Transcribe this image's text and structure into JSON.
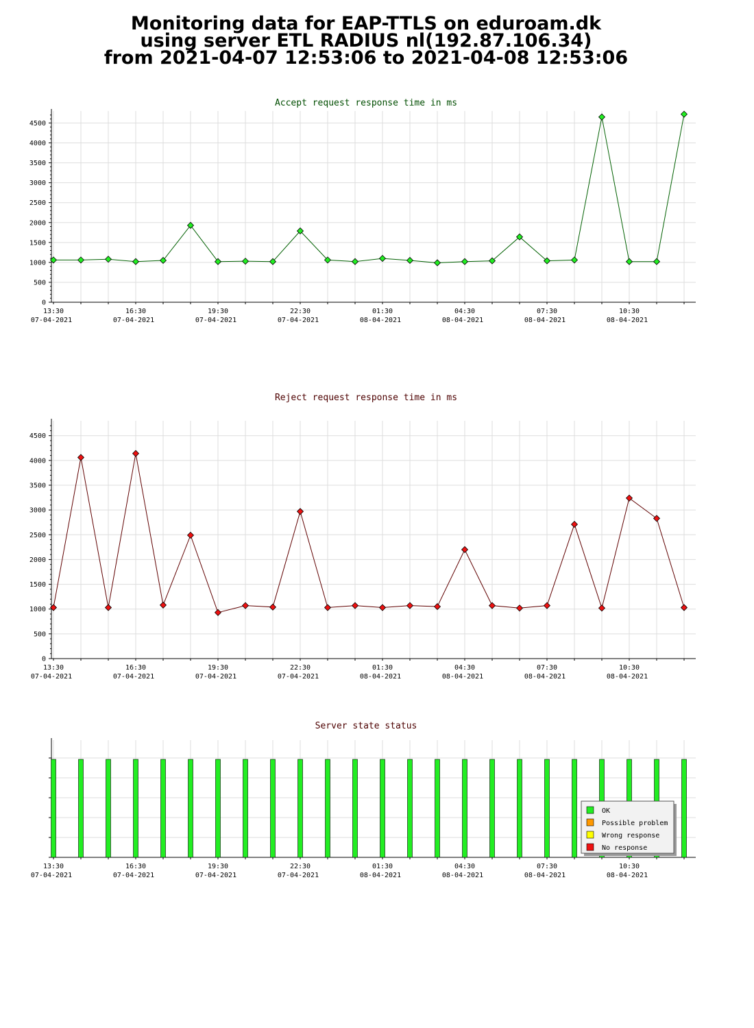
{
  "page": {
    "title_lines": [
      "Monitoring data for EAP-TTLS on eduroam.dk",
      "using server ETL RADIUS nl(192.87.106.34)",
      "from 2021-04-07 12:53:06 to 2021-04-08 12:53:06"
    ]
  },
  "colors": {
    "accept_line": "#006000",
    "accept_marker": "#22ee22",
    "reject_line": "#600000",
    "reject_marker": "#ee1111",
    "title_accept": "#004d00",
    "title_reject": "#4d0000",
    "grid": "#dddddd",
    "ok": "#22ee22",
    "possible_problem": "#ff9900",
    "wrong_response": "#ffff00",
    "no_response": "#ee1111"
  },
  "x_axis": {
    "ticks": [
      {
        "time": "13:30",
        "date": "07-04-2021"
      },
      {
        "time": "16:30",
        "date": "07-04-2021"
      },
      {
        "time": "19:30",
        "date": "07-04-2021"
      },
      {
        "time": "22:30",
        "date": "07-04-2021"
      },
      {
        "time": "01:30",
        "date": "08-04-2021"
      },
      {
        "time": "04:30",
        "date": "08-04-2021"
      },
      {
        "time": "07:30",
        "date": "08-04-2021"
      },
      {
        "time": "10:30",
        "date": "08-04-2021"
      }
    ]
  },
  "chart_data": [
    {
      "type": "line",
      "title": "Accept request response time in ms",
      "ylim": [
        0,
        4800
      ],
      "yticks": [
        0,
        500,
        1000,
        1500,
        2000,
        2500,
        3000,
        3500,
        4000,
        4500
      ],
      "grid": true,
      "x": [
        "13:30",
        "14:30",
        "15:30",
        "16:30",
        "17:30",
        "18:30",
        "19:30",
        "20:30",
        "21:30",
        "22:30",
        "23:30",
        "00:30",
        "01:30",
        "02:30",
        "03:30",
        "04:30",
        "05:30",
        "06:30",
        "07:30",
        "08:30",
        "09:30",
        "10:30",
        "11:30",
        "12:30"
      ],
      "values": [
        1060,
        1060,
        1080,
        1020,
        1050,
        1930,
        1020,
        1030,
        1020,
        1790,
        1060,
        1020,
        1100,
        1050,
        990,
        1020,
        1040,
        1640,
        1040,
        1060,
        4650,
        1020,
        1020,
        4720
      ]
    },
    {
      "type": "line",
      "title": "Reject request response time in ms",
      "ylim": [
        0,
        4800
      ],
      "yticks": [
        0,
        500,
        1000,
        1500,
        2000,
        2500,
        3000,
        3500,
        4000,
        4500
      ],
      "grid": true,
      "x": [
        "13:30",
        "14:30",
        "15:30",
        "16:30",
        "17:30",
        "18:30",
        "19:30",
        "20:30",
        "21:30",
        "22:30",
        "23:30",
        "00:30",
        "01:30",
        "02:30",
        "03:30",
        "04:30",
        "05:30",
        "06:30",
        "07:30",
        "08:30",
        "09:30",
        "10:30",
        "11:30",
        "12:30"
      ],
      "values": [
        1030,
        4060,
        1030,
        4140,
        1080,
        2490,
        930,
        1070,
        1040,
        2970,
        1030,
        1070,
        1030,
        1070,
        1050,
        2200,
        1070,
        1020,
        1070,
        2710,
        1020,
        3240,
        2830,
        1030
      ]
    },
    {
      "type": "bar",
      "title": "Server state status",
      "grid": true,
      "legend": {
        "placement": "bottom-right",
        "entries": [
          "OK",
          "Possible problem",
          "Wrong response",
          "No response"
        ]
      },
      "x": [
        "13:30",
        "14:30",
        "15:30",
        "16:30",
        "17:30",
        "18:30",
        "19:30",
        "20:30",
        "21:30",
        "22:30",
        "23:30",
        "00:30",
        "01:30",
        "02:30",
        "03:30",
        "04:30",
        "05:30",
        "06:30",
        "07:30",
        "08:30",
        "09:30",
        "10:30",
        "11:30",
        "12:30"
      ],
      "status": [
        "OK",
        "OK",
        "OK",
        "OK",
        "OK",
        "OK",
        "OK",
        "OK",
        "OK",
        "OK",
        "OK",
        "OK",
        "OK",
        "OK",
        "OK",
        "OK",
        "OK",
        "OK",
        "OK",
        "OK",
        "OK",
        "OK",
        "OK",
        "OK"
      ]
    }
  ]
}
